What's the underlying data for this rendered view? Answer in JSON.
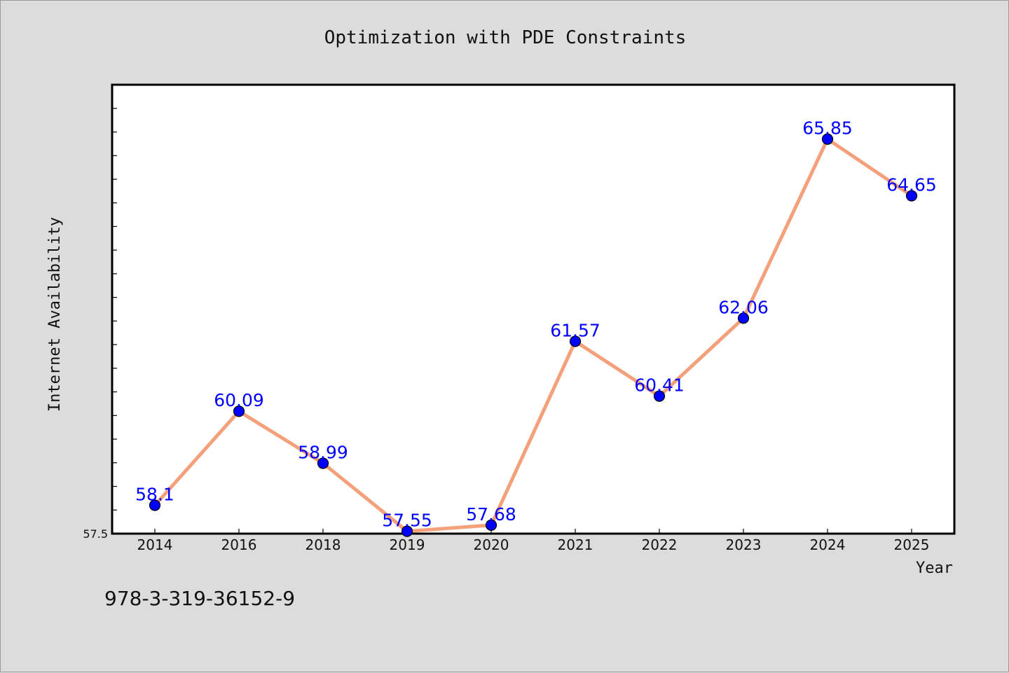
{
  "chart_data": {
    "type": "line",
    "title": "Optimization with PDE Constraints",
    "xlabel": "Year",
    "ylabel": "Internet Availability",
    "categories": [
      "2014",
      "2016",
      "2018",
      "2019",
      "2020",
      "2021",
      "2022",
      "2023",
      "2024",
      "2025"
    ],
    "values": [
      58.1,
      60.09,
      58.99,
      57.55,
      57.68,
      61.57,
      60.41,
      62.06,
      65.85,
      64.65
    ],
    "data_labels": [
      "58.1",
      "60.09",
      "58.99",
      "57.55",
      "57.68",
      "61.57",
      "60.41",
      "62.06",
      "65.85",
      "64.65"
    ],
    "y_tick_labels": [
      "57.5"
    ],
    "ylim": [
      57.5,
      67.0
    ],
    "grid": false,
    "line_color": "#f4a07a",
    "marker_color": "#0000ff",
    "label_color": "#0000ff"
  },
  "annotation": {
    "isbn": "978-3-319-36152-9"
  }
}
